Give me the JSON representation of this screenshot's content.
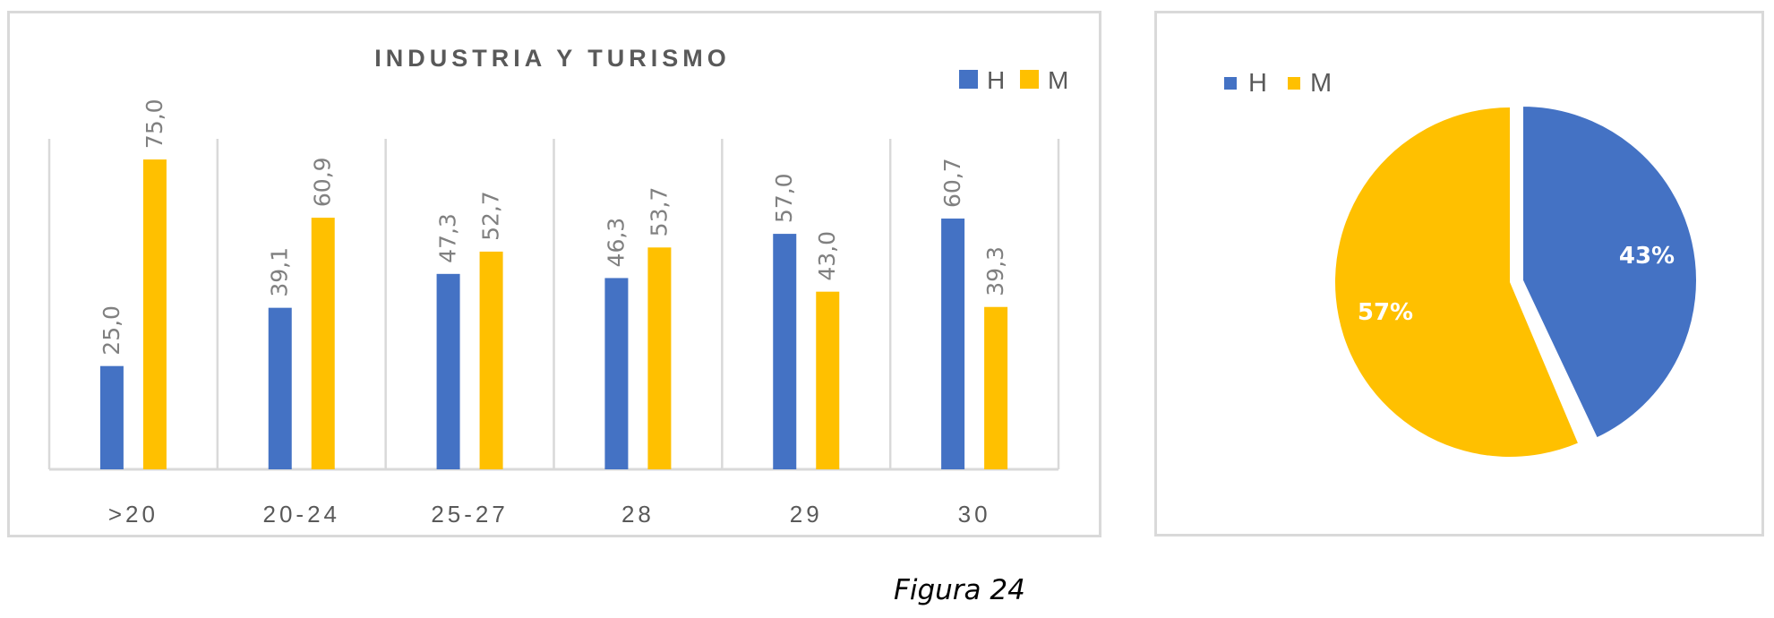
{
  "colors": {
    "H": "#4472C4",
    "M": "#FFC000",
    "grid": "#d9d9d9",
    "label": "#808080",
    "title": "#595959",
    "axis_text": "#595959"
  },
  "bar_chart": {
    "title": "INDUSTRIA Y TURISMO",
    "legend": [
      {
        "key": "H",
        "label": "H"
      },
      {
        "key": "M",
        "label": "M"
      }
    ]
  },
  "pie_chart": {
    "legend": [
      {
        "key": "H",
        "label": "H"
      },
      {
        "key": "M",
        "label": "M"
      }
    ],
    "slices": [
      {
        "key": "H",
        "label": "43%"
      },
      {
        "key": "M",
        "label": "57%"
      }
    ]
  },
  "caption": "Figura 24",
  "chart_data": [
    {
      "type": "bar",
      "title": "INDUSTRIA Y TURISMO",
      "xlabel": "",
      "ylabel": "",
      "categories": [
        ">20",
        "20-24",
        "25-27",
        "28",
        "29",
        "30"
      ],
      "series": [
        {
          "name": "H",
          "values": [
            25.0,
            39.1,
            47.3,
            46.3,
            57.0,
            60.7
          ],
          "labels": [
            "25,0",
            "39,1",
            "47,3",
            "46,3",
            "57,0",
            "60,7"
          ]
        },
        {
          "name": "M",
          "values": [
            75.0,
            60.9,
            52.7,
            53.7,
            43.0,
            39.3
          ],
          "labels": [
            "75,0",
            "60,9",
            "52,7",
            "53,7",
            "43,0",
            "39,3"
          ]
        }
      ],
      "ylim": [
        0,
        80
      ],
      "grid": "vertical category separators",
      "legend_position": "top-right",
      "data_labels": "rotated 90°, above bars"
    },
    {
      "type": "pie",
      "title": "",
      "categories": [
        "H",
        "M"
      ],
      "values": [
        43,
        57
      ],
      "labels": [
        "43%",
        "57%"
      ],
      "exploded": "H",
      "legend_position": "top-left"
    }
  ]
}
